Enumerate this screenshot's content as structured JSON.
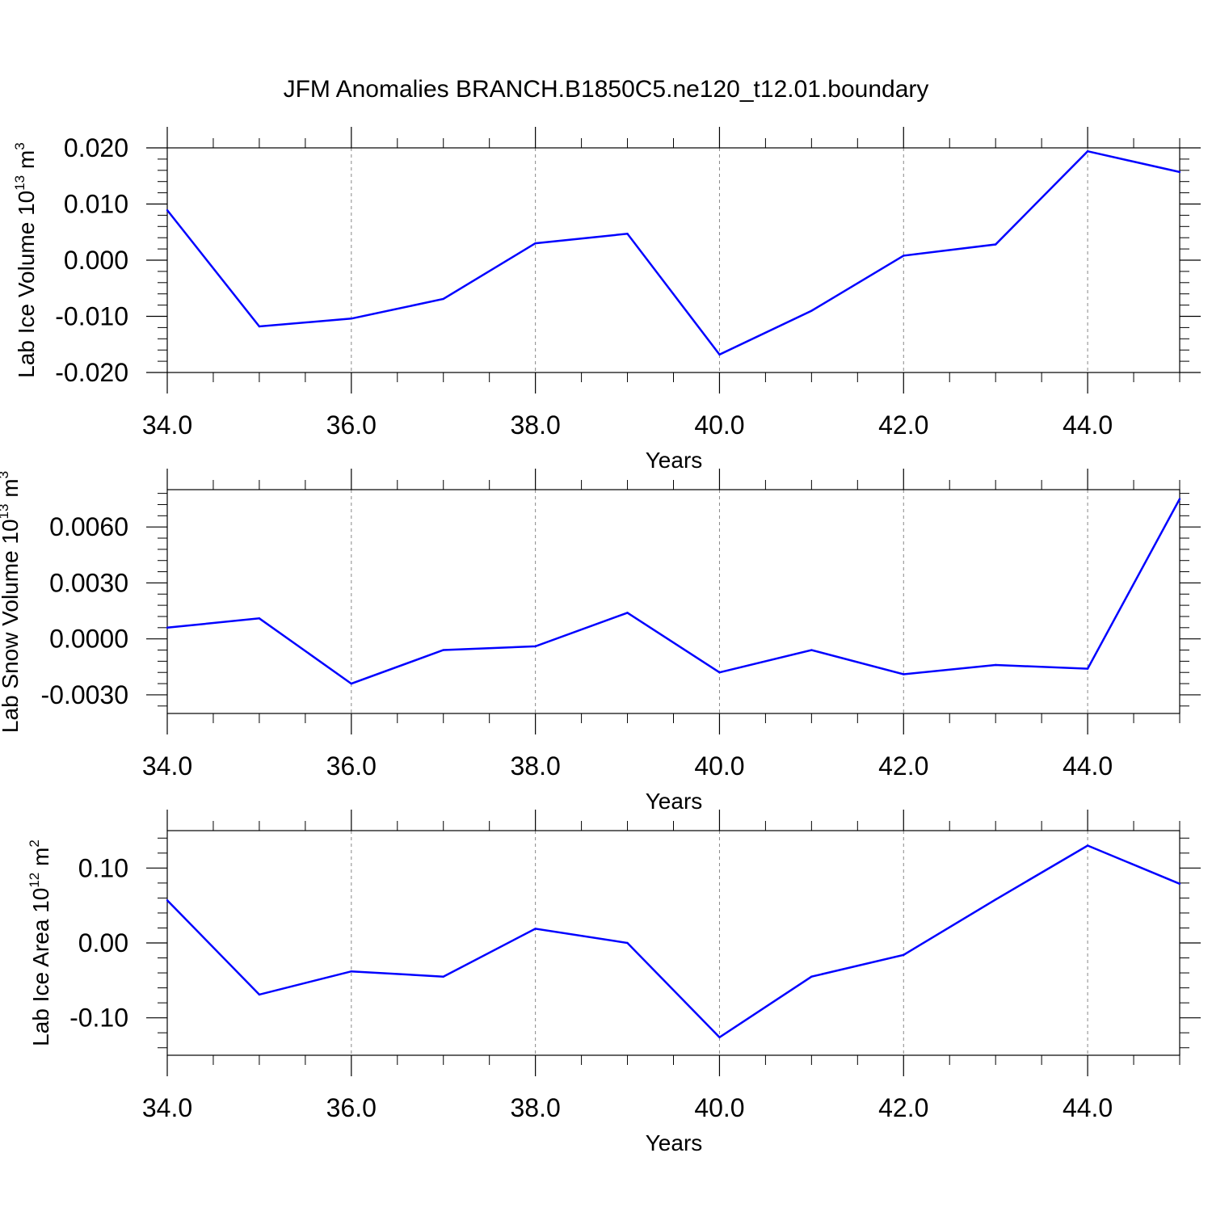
{
  "title": "JFM Anomalies BRANCH.B1850C5.ne120_t12.01.boundary",
  "colors": {
    "line": "#0000ff",
    "axis": "#000000",
    "grid": "#888888"
  },
  "chart_data": [
    {
      "type": "line",
      "ylabel_main": "Lab Ice Volume 10",
      "ylabel_exp": "13",
      "ylabel_unit": " m",
      "ylabel_unit_exp": "3",
      "xlabel": "Years",
      "xlim": [
        34,
        45
      ],
      "ylim": [
        -0.02,
        0.02
      ],
      "yticks": [
        0.02,
        0.01,
        0.0,
        -0.01,
        -0.02
      ],
      "ytick_labels": [
        "0.020",
        "0.010",
        "0.000",
        "-0.010",
        "-0.020"
      ],
      "yminor_step": 0.002,
      "xticks": [
        34,
        36,
        38,
        40,
        42,
        44
      ],
      "xtick_labels": [
        "34.0",
        "36.0",
        "38.0",
        "40.0",
        "42.0",
        "44.0"
      ],
      "x": [
        34,
        35,
        36,
        37,
        38,
        39,
        40,
        41,
        42,
        43,
        44,
        45
      ],
      "values": [
        0.0089,
        -0.0118,
        -0.0104,
        -0.0069,
        0.003,
        0.0047,
        -0.0168,
        -0.009,
        0.0008,
        0.0028,
        0.0194,
        0.0157
      ]
    },
    {
      "type": "line",
      "ylabel_main": "Lab Snow Volume 10",
      "ylabel_exp": "13",
      "ylabel_unit": " m",
      "ylabel_unit_exp": "3",
      "xlabel": "Years",
      "xlim": [
        34,
        45
      ],
      "ylim": [
        -0.004,
        0.008
      ],
      "yticks": [
        0.006,
        0.003,
        0.0,
        -0.003
      ],
      "ytick_labels": [
        "0.0060",
        "0.0030",
        "0.0000",
        "-0.0030"
      ],
      "yminor_step": 0.0006,
      "xticks": [
        34,
        36,
        38,
        40,
        42,
        44
      ],
      "xtick_labels": [
        "34.0",
        "36.0",
        "38.0",
        "40.0",
        "42.0",
        "44.0"
      ],
      "x": [
        34,
        35,
        36,
        37,
        38,
        39,
        40,
        41,
        42,
        43,
        44,
        45
      ],
      "values": [
        0.0006,
        0.0011,
        -0.0024,
        -0.0006,
        -0.0004,
        0.0014,
        -0.0018,
        -0.0006,
        -0.0019,
        -0.0014,
        -0.0016,
        0.0075
      ]
    },
    {
      "type": "line",
      "ylabel_main": "Lab Ice Area 10",
      "ylabel_exp": "12",
      "ylabel_unit": " m",
      "ylabel_unit_exp": "2",
      "xlabel": "Years",
      "xlim": [
        34,
        45
      ],
      "ylim": [
        -0.15,
        0.15
      ],
      "yticks": [
        0.1,
        0.0,
        -0.1
      ],
      "ytick_labels": [
        "0.10",
        "0.00",
        "-0.10"
      ],
      "yminor_step": 0.02,
      "xticks": [
        34,
        36,
        38,
        40,
        42,
        44
      ],
      "xtick_labels": [
        "34.0",
        "36.0",
        "38.0",
        "40.0",
        "42.0",
        "44.0"
      ],
      "x": [
        34,
        35,
        36,
        37,
        38,
        39,
        40,
        41,
        42,
        43,
        44,
        45
      ],
      "values": [
        0.057,
        -0.069,
        -0.038,
        -0.045,
        0.019,
        0.0,
        -0.126,
        -0.045,
        -0.016,
        0.058,
        0.13,
        0.079
      ]
    }
  ]
}
